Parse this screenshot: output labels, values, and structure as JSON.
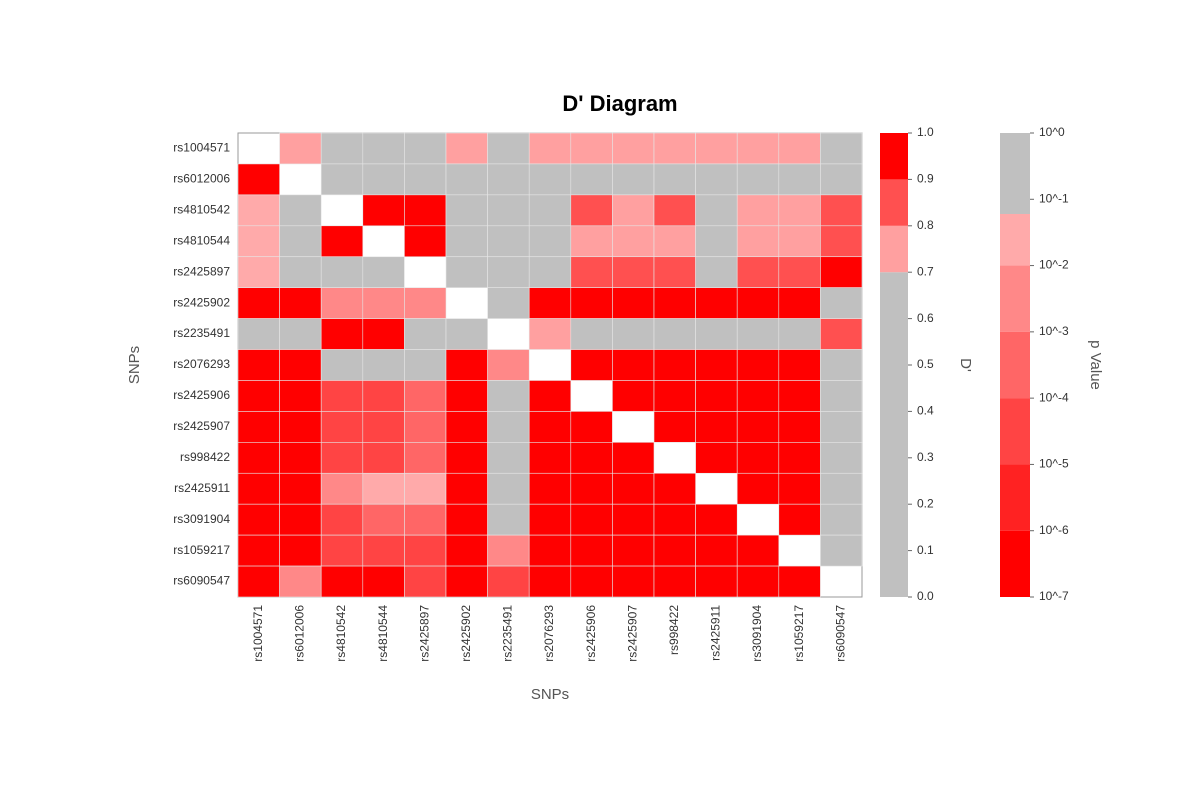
{
  "chart_data": {
    "type": "heatmap",
    "title": "D' Diagram",
    "xlabel": "SNPs",
    "ylabel": "SNPs",
    "categories": [
      "rs1004571",
      "rs6012006",
      "rs4810542",
      "rs4810544",
      "rs2425897",
      "rs2425902",
      "rs2235491",
      "rs2076293",
      "rs2425906",
      "rs2425907",
      "rs998422",
      "rs2425911",
      "rs3091904",
      "rs1059217",
      "rs6090547"
    ],
    "values": [
      [
        null,
        0.75,
        0.5,
        0.5,
        0.5,
        0.75,
        0.5,
        0.75,
        0.75,
        0.75,
        0.75,
        0.75,
        0.75,
        0.75,
        0.5
      ],
      [
        3e-07,
        null,
        0.5,
        0.5,
        0.5,
        0.5,
        0.5,
        0.5,
        0.5,
        0.5,
        0.5,
        0.5,
        0.5,
        0.5,
        0.5
      ],
      [
        0.03,
        0.5,
        null,
        0.95,
        0.95,
        0.5,
        0.5,
        0.5,
        0.85,
        0.75,
        0.85,
        0.5,
        0.75,
        0.75,
        0.85
      ],
      [
        0.03,
        0.5,
        3e-07,
        null,
        0.95,
        0.5,
        0.5,
        0.5,
        0.75,
        0.75,
        0.75,
        0.5,
        0.75,
        0.75,
        0.85
      ],
      [
        0.03,
        0.5,
        0.5,
        0.5,
        null,
        0.5,
        0.5,
        0.5,
        0.85,
        0.85,
        0.85,
        0.5,
        0.85,
        0.85,
        0.95
      ],
      [
        3e-07,
        3e-07,
        0.003,
        0.003,
        0.003,
        null,
        0.5,
        0.95,
        0.95,
        0.95,
        0.95,
        0.95,
        0.95,
        0.95,
        0.5
      ],
      [
        0.5,
        0.5,
        3e-07,
        3e-07,
        0.5,
        0.5,
        null,
        0.75,
        0.5,
        0.5,
        0.5,
        0.5,
        0.5,
        0.5,
        0.85
      ],
      [
        3e-07,
        3e-07,
        0.5,
        0.5,
        0.5,
        3e-07,
        0.003,
        null,
        0.95,
        0.95,
        0.95,
        0.95,
        0.95,
        0.95,
        0.5
      ],
      [
        3e-07,
        3e-07,
        3e-05,
        3e-05,
        0.0003,
        3e-07,
        0.5,
        3e-07,
        null,
        0.95,
        0.95,
        0.95,
        0.95,
        0.95,
        0.5
      ],
      [
        3e-07,
        3e-07,
        3e-05,
        3e-05,
        0.0003,
        3e-07,
        0.5,
        3e-07,
        3e-07,
        null,
        0.95,
        0.95,
        0.95,
        0.95,
        0.5
      ],
      [
        3e-07,
        3e-07,
        3e-05,
        3e-05,
        0.0003,
        3e-07,
        0.5,
        3e-07,
        3e-07,
        3e-07,
        null,
        0.95,
        0.95,
        0.95,
        0.5
      ],
      [
        3e-07,
        3e-07,
        0.003,
        0.03,
        0.03,
        3e-07,
        0.5,
        3e-07,
        3e-07,
        3e-07,
        3e-07,
        null,
        0.95,
        0.95,
        0.5
      ],
      [
        3e-07,
        3e-07,
        3e-05,
        0.0003,
        0.0003,
        3e-07,
        0.5,
        3e-07,
        3e-07,
        3e-07,
        3e-07,
        3e-07,
        null,
        0.95,
        0.5
      ],
      [
        3e-07,
        3e-07,
        3e-05,
        3e-05,
        3e-05,
        3e-07,
        0.003,
        3e-07,
        3e-07,
        3e-07,
        3e-07,
        3e-07,
        3e-07,
        null,
        0.5
      ],
      [
        3e-07,
        0.003,
        3e-07,
        3e-07,
        3e-05,
        3e-07,
        3e-05,
        3e-07,
        3e-07,
        3e-07,
        3e-07,
        3e-07,
        3e-07,
        3e-07,
        null
      ]
    ],
    "colorbars": [
      {
        "label": "D'",
        "triangle": "upper",
        "scale": "linear",
        "lim": [
          0,
          1
        ],
        "ticks": [
          {
            "value": 0,
            "label": "0.0"
          },
          0.1,
          0.2,
          0.3,
          0.4,
          0.5,
          0.6,
          0.7,
          0.8,
          0.9,
          {
            "value": 1,
            "label": "1.0"
          }
        ],
        "bands": [
          {
            "min": 0,
            "max": 0.7,
            "color": "#c0c0c0"
          },
          {
            "min": 0.7,
            "max": 0.8,
            "color": "#ffa0a0"
          },
          {
            "min": 0.8,
            "max": 0.9,
            "color": "#ff5050"
          },
          {
            "min": 0.9,
            "max": 1,
            "color": "#ff0000"
          }
        ]
      },
      {
        "label": "p Value",
        "triangle": "lower",
        "scale": "log",
        "lim": [
          1e-07,
          1
        ],
        "ticks": [
          {
            "value": 1,
            "label": "10^0"
          },
          {
            "value": 0.1,
            "label": "10^-1"
          },
          {
            "value": 0.01,
            "label": "10^-2"
          },
          {
            "value": 0.001,
            "label": "10^-3"
          },
          {
            "value": 0.0001,
            "label": "10^-4"
          },
          {
            "value": 1e-05,
            "label": "10^-5"
          },
          {
            "value": 1e-06,
            "label": "10^-6"
          },
          {
            "value": 1e-07,
            "label": "10^-7"
          }
        ],
        "bands": [
          {
            "min": 0.06,
            "max": 1,
            "color": "#c0c0c0"
          },
          {
            "min": 0.01,
            "max": 0.06,
            "color": "#ffaaaa"
          },
          {
            "min": 0.001,
            "max": 0.01,
            "color": "#ff8888"
          },
          {
            "min": 0.0001,
            "max": 0.001,
            "color": "#ff6666"
          },
          {
            "min": 1e-05,
            "max": 0.0001,
            "color": "#ff4444"
          },
          {
            "min": 1e-06,
            "max": 1e-05,
            "color": "#ff2222"
          },
          {
            "min": 1e-07,
            "max": 1e-06,
            "color": "#ff0000"
          }
        ]
      }
    ]
  }
}
